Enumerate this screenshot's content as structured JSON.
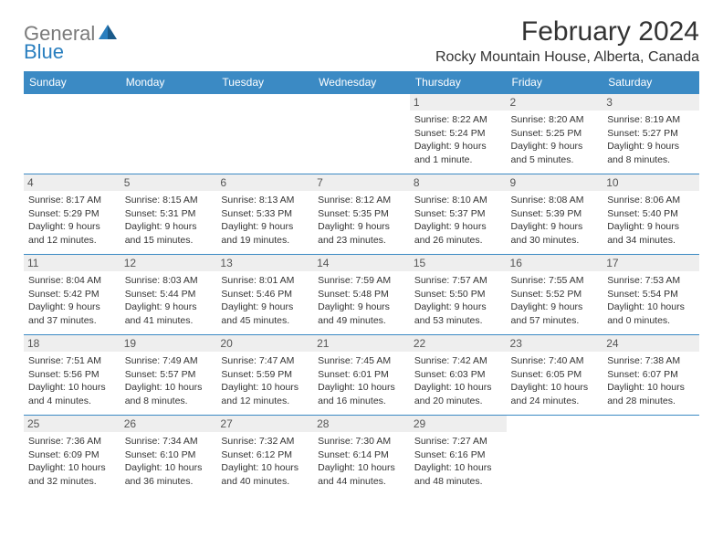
{
  "logo": {
    "text1": "General",
    "text2": "Blue"
  },
  "title": "February 2024",
  "location": "Rocky Mountain House, Alberta, Canada",
  "colors": {
    "header_bg": "#3b8ac4",
    "header_text": "#ffffff",
    "border": "#3b8ac4",
    "daynum_bg": "#eeeeee",
    "text": "#333333",
    "logo_gray": "#7a7a7a",
    "logo_blue": "#2a7fbf"
  },
  "day_headers": [
    "Sunday",
    "Monday",
    "Tuesday",
    "Wednesday",
    "Thursday",
    "Friday",
    "Saturday"
  ],
  "weeks": [
    [
      {
        "empty": true
      },
      {
        "empty": true
      },
      {
        "empty": true
      },
      {
        "empty": true
      },
      {
        "num": "1",
        "sunrise": "Sunrise: 8:22 AM",
        "sunset": "Sunset: 5:24 PM",
        "dl1": "Daylight: 9 hours",
        "dl2": "and 1 minute."
      },
      {
        "num": "2",
        "sunrise": "Sunrise: 8:20 AM",
        "sunset": "Sunset: 5:25 PM",
        "dl1": "Daylight: 9 hours",
        "dl2": "and 5 minutes."
      },
      {
        "num": "3",
        "sunrise": "Sunrise: 8:19 AM",
        "sunset": "Sunset: 5:27 PM",
        "dl1": "Daylight: 9 hours",
        "dl2": "and 8 minutes."
      }
    ],
    [
      {
        "num": "4",
        "sunrise": "Sunrise: 8:17 AM",
        "sunset": "Sunset: 5:29 PM",
        "dl1": "Daylight: 9 hours",
        "dl2": "and 12 minutes."
      },
      {
        "num": "5",
        "sunrise": "Sunrise: 8:15 AM",
        "sunset": "Sunset: 5:31 PM",
        "dl1": "Daylight: 9 hours",
        "dl2": "and 15 minutes."
      },
      {
        "num": "6",
        "sunrise": "Sunrise: 8:13 AM",
        "sunset": "Sunset: 5:33 PM",
        "dl1": "Daylight: 9 hours",
        "dl2": "and 19 minutes."
      },
      {
        "num": "7",
        "sunrise": "Sunrise: 8:12 AM",
        "sunset": "Sunset: 5:35 PM",
        "dl1": "Daylight: 9 hours",
        "dl2": "and 23 minutes."
      },
      {
        "num": "8",
        "sunrise": "Sunrise: 8:10 AM",
        "sunset": "Sunset: 5:37 PM",
        "dl1": "Daylight: 9 hours",
        "dl2": "and 26 minutes."
      },
      {
        "num": "9",
        "sunrise": "Sunrise: 8:08 AM",
        "sunset": "Sunset: 5:39 PM",
        "dl1": "Daylight: 9 hours",
        "dl2": "and 30 minutes."
      },
      {
        "num": "10",
        "sunrise": "Sunrise: 8:06 AM",
        "sunset": "Sunset: 5:40 PM",
        "dl1": "Daylight: 9 hours",
        "dl2": "and 34 minutes."
      }
    ],
    [
      {
        "num": "11",
        "sunrise": "Sunrise: 8:04 AM",
        "sunset": "Sunset: 5:42 PM",
        "dl1": "Daylight: 9 hours",
        "dl2": "and 37 minutes."
      },
      {
        "num": "12",
        "sunrise": "Sunrise: 8:03 AM",
        "sunset": "Sunset: 5:44 PM",
        "dl1": "Daylight: 9 hours",
        "dl2": "and 41 minutes."
      },
      {
        "num": "13",
        "sunrise": "Sunrise: 8:01 AM",
        "sunset": "Sunset: 5:46 PM",
        "dl1": "Daylight: 9 hours",
        "dl2": "and 45 minutes."
      },
      {
        "num": "14",
        "sunrise": "Sunrise: 7:59 AM",
        "sunset": "Sunset: 5:48 PM",
        "dl1": "Daylight: 9 hours",
        "dl2": "and 49 minutes."
      },
      {
        "num": "15",
        "sunrise": "Sunrise: 7:57 AM",
        "sunset": "Sunset: 5:50 PM",
        "dl1": "Daylight: 9 hours",
        "dl2": "and 53 minutes."
      },
      {
        "num": "16",
        "sunrise": "Sunrise: 7:55 AM",
        "sunset": "Sunset: 5:52 PM",
        "dl1": "Daylight: 9 hours",
        "dl2": "and 57 minutes."
      },
      {
        "num": "17",
        "sunrise": "Sunrise: 7:53 AM",
        "sunset": "Sunset: 5:54 PM",
        "dl1": "Daylight: 10 hours",
        "dl2": "and 0 minutes."
      }
    ],
    [
      {
        "num": "18",
        "sunrise": "Sunrise: 7:51 AM",
        "sunset": "Sunset: 5:56 PM",
        "dl1": "Daylight: 10 hours",
        "dl2": "and 4 minutes."
      },
      {
        "num": "19",
        "sunrise": "Sunrise: 7:49 AM",
        "sunset": "Sunset: 5:57 PM",
        "dl1": "Daylight: 10 hours",
        "dl2": "and 8 minutes."
      },
      {
        "num": "20",
        "sunrise": "Sunrise: 7:47 AM",
        "sunset": "Sunset: 5:59 PM",
        "dl1": "Daylight: 10 hours",
        "dl2": "and 12 minutes."
      },
      {
        "num": "21",
        "sunrise": "Sunrise: 7:45 AM",
        "sunset": "Sunset: 6:01 PM",
        "dl1": "Daylight: 10 hours",
        "dl2": "and 16 minutes."
      },
      {
        "num": "22",
        "sunrise": "Sunrise: 7:42 AM",
        "sunset": "Sunset: 6:03 PM",
        "dl1": "Daylight: 10 hours",
        "dl2": "and 20 minutes."
      },
      {
        "num": "23",
        "sunrise": "Sunrise: 7:40 AM",
        "sunset": "Sunset: 6:05 PM",
        "dl1": "Daylight: 10 hours",
        "dl2": "and 24 minutes."
      },
      {
        "num": "24",
        "sunrise": "Sunrise: 7:38 AM",
        "sunset": "Sunset: 6:07 PM",
        "dl1": "Daylight: 10 hours",
        "dl2": "and 28 minutes."
      }
    ],
    [
      {
        "num": "25",
        "sunrise": "Sunrise: 7:36 AM",
        "sunset": "Sunset: 6:09 PM",
        "dl1": "Daylight: 10 hours",
        "dl2": "and 32 minutes."
      },
      {
        "num": "26",
        "sunrise": "Sunrise: 7:34 AM",
        "sunset": "Sunset: 6:10 PM",
        "dl1": "Daylight: 10 hours",
        "dl2": "and 36 minutes."
      },
      {
        "num": "27",
        "sunrise": "Sunrise: 7:32 AM",
        "sunset": "Sunset: 6:12 PM",
        "dl1": "Daylight: 10 hours",
        "dl2": "and 40 minutes."
      },
      {
        "num": "28",
        "sunrise": "Sunrise: 7:30 AM",
        "sunset": "Sunset: 6:14 PM",
        "dl1": "Daylight: 10 hours",
        "dl2": "and 44 minutes."
      },
      {
        "num": "29",
        "sunrise": "Sunrise: 7:27 AM",
        "sunset": "Sunset: 6:16 PM",
        "dl1": "Daylight: 10 hours",
        "dl2": "and 48 minutes."
      },
      {
        "empty": true
      },
      {
        "empty": true
      }
    ]
  ]
}
